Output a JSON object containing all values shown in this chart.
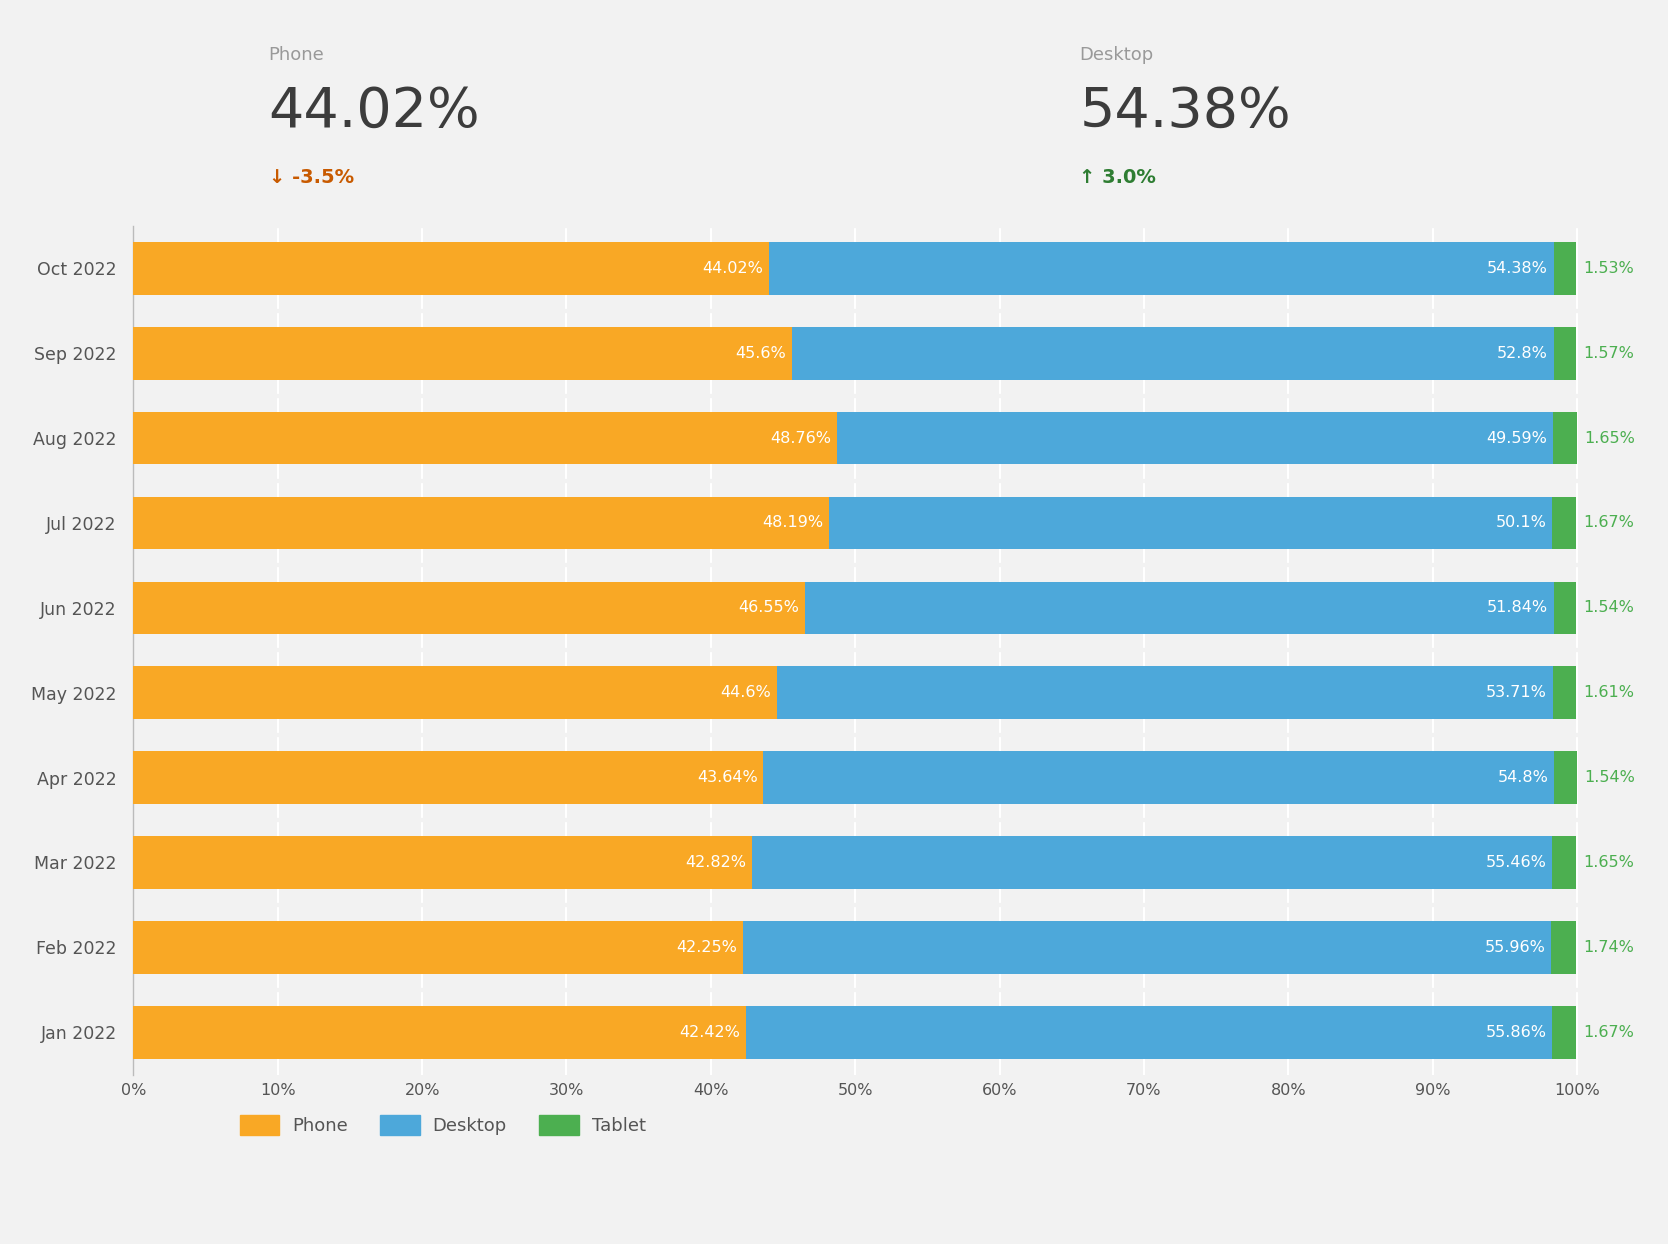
{
  "months": [
    "Oct 2022",
    "Sep 2022",
    "Aug 2022",
    "Jul 2022",
    "Jun 2022",
    "May 2022",
    "Apr 2022",
    "Mar 2022",
    "Feb 2022",
    "Jan 2022"
  ],
  "phone": [
    44.02,
    45.6,
    48.76,
    48.19,
    46.55,
    44.6,
    43.64,
    42.82,
    42.25,
    42.42
  ],
  "desktop": [
    54.38,
    52.8,
    49.59,
    50.1,
    51.84,
    53.71,
    54.8,
    55.46,
    55.96,
    55.86
  ],
  "tablet": [
    1.53,
    1.57,
    1.65,
    1.67,
    1.54,
    1.61,
    1.54,
    1.65,
    1.74,
    1.67
  ],
  "phone_color": "#F9A825",
  "desktop_color": "#4DA8DA",
  "tablet_color": "#4CAF50",
  "background_color": "#F2F2F2",
  "summary_phone_label": "Phone",
  "summary_phone_value": "44.02%",
  "summary_phone_change": "↓ -3.5%",
  "summary_phone_change_color": "#C85A00",
  "summary_desktop_label": "Desktop",
  "summary_desktop_value": "54.38%",
  "summary_desktop_change": "↑ 3.0%",
  "summary_desktop_change_color": "#2E7D32",
  "legend_labels": [
    "Phone",
    "Desktop",
    "Tablet"
  ],
  "xlabel_ticks": [
    "0%",
    "10%",
    "20%",
    "30%",
    "40%",
    "50%",
    "60%",
    "70%",
    "80%",
    "90%",
    "100%"
  ],
  "xlabel_values": [
    0,
    10,
    20,
    30,
    40,
    50,
    60,
    70,
    80,
    90,
    100
  ],
  "text_color_dark": "#555555",
  "text_color_label": "#999999",
  "grid_color": "#FFFFFF",
  "bar_gap_color": "#F2F2F2"
}
